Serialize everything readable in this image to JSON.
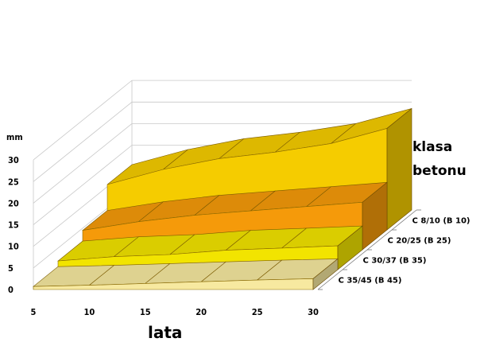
{
  "chart_data": {
    "type": "area",
    "title": "",
    "xlabel": "lata",
    "ylabel": "mm",
    "zlabel": "klasa betonu",
    "x": [
      5,
      10,
      15,
      20,
      25,
      30
    ],
    "xlim": [
      5,
      30
    ],
    "ylim": [
      0,
      30
    ],
    "yticks": [
      0,
      5,
      10,
      15,
      20,
      25,
      30
    ],
    "grid": true,
    "legend": "none",
    "series": [
      {
        "name": "C 8/10 (B 10)",
        "values": [
          10.5,
          14,
          16.5,
          18,
          20,
          23.5
        ],
        "color": "#f5cc00"
      },
      {
        "name": "C 20/25 (B 25)",
        "values": [
          4.5,
          6.5,
          8,
          9,
          10,
          11
        ],
        "color": "#f59a0a"
      },
      {
        "name": "C 30/37 (B 35)",
        "values": [
          2,
          3,
          3.5,
          4.5,
          5,
          5.5
        ],
        "color": "#f2e400"
      },
      {
        "name": "C 35/45 (B 45)",
        "values": [
          0.7,
          1,
          1.4,
          1.8,
          2.2,
          2.5
        ],
        "color": "#f7e9a0"
      }
    ]
  }
}
